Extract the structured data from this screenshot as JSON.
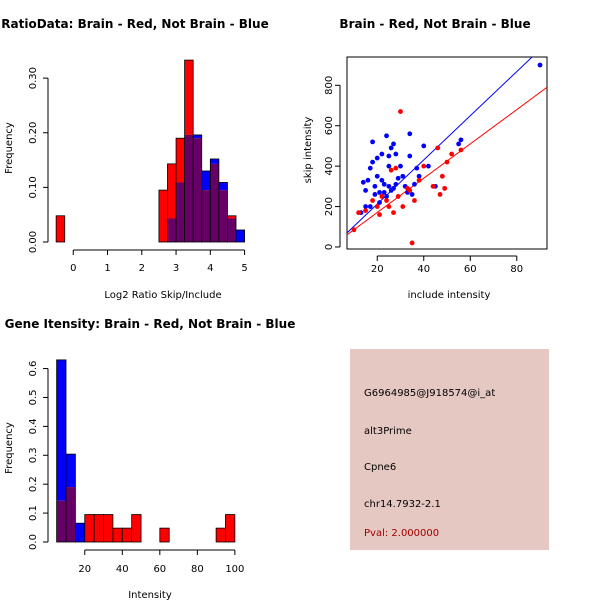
{
  "colors": {
    "red": "#ff0000",
    "blue": "#0000ff",
    "overlap": "#660066",
    "panel": "#e6c8c2",
    "pval": "#a00000"
  },
  "chart_data": [
    {
      "type": "bar",
      "title": "RatioData: Brain - Red, Not Brain - Blue",
      "xlabel": "Log2 Ratio Skip/Include",
      "ylabel": "Frequency",
      "xlim": [
        -0.65,
        5.1
      ],
      "ylim": [
        0,
        0.335
      ],
      "xticks": [
        0,
        1,
        2,
        3,
        4,
        5
      ],
      "yticks": [
        0.0,
        0.1,
        0.2,
        0.3
      ],
      "ytick_labels": [
        "0.00",
        "0.10",
        "0.20",
        "0.30"
      ],
      "bin_start": -0.5,
      "bin_width": 0.25,
      "series": [
        {
          "name": "Brain",
          "values": [
            0.048,
            0,
            0,
            0,
            0,
            0,
            0,
            0,
            0,
            0,
            0,
            0,
            0.095,
            0.143,
            0.19,
            0.333,
            0.19,
            0.095,
            0.143,
            0.095,
            0.048,
            0
          ]
        },
        {
          "name": "Not Brain",
          "values": [
            0,
            0,
            0,
            0,
            0,
            0,
            0,
            0,
            0,
            0,
            0,
            0,
            0,
            0.043,
            0.109,
            0.196,
            0.196,
            0.13,
            0.152,
            0.109,
            0.043,
            0.022
          ]
        }
      ]
    },
    {
      "type": "scatter",
      "title": "Brain - Red, Not Brain - Blue",
      "xlabel": "include intensity",
      "ylabel": "skip intensity",
      "xlim": [
        7,
        93
      ],
      "ylim": [
        -10,
        940
      ],
      "xticks": [
        20,
        40,
        60,
        80
      ],
      "yticks": [
        0,
        200,
        400,
        600,
        800
      ],
      "series": [
        {
          "name": "Brain",
          "points": [
            [
              10,
              85
            ],
            [
              12,
              170
            ],
            [
              15,
              180
            ],
            [
              18,
              230
            ],
            [
              20,
              200
            ],
            [
              21,
              160
            ],
            [
              22,
              250
            ],
            [
              24,
              230
            ],
            [
              25,
              200
            ],
            [
              26,
              380
            ],
            [
              27,
              170
            ],
            [
              28,
              390
            ],
            [
              29,
              250
            ],
            [
              30,
              670
            ],
            [
              31,
              200
            ],
            [
              33,
              290
            ],
            [
              34,
              280
            ],
            [
              35,
              20
            ],
            [
              36,
              230
            ],
            [
              38,
              330
            ],
            [
              40,
              400
            ],
            [
              44,
              300
            ],
            [
              46,
              490
            ],
            [
              47,
              260
            ],
            [
              48,
              350
            ],
            [
              49,
              290
            ],
            [
              50,
              420
            ],
            [
              52,
              460
            ],
            [
              56,
              480
            ]
          ],
          "fit": [
            [
              7,
              60
            ],
            [
              93,
              790
            ]
          ]
        },
        {
          "name": "Not Brain",
          "points": [
            [
              13,
              170
            ],
            [
              14,
              320
            ],
            [
              15,
              280
            ],
            [
              15,
              200
            ],
            [
              16,
              330
            ],
            [
              17,
              200
            ],
            [
              17,
              390
            ],
            [
              18,
              520
            ],
            [
              18,
              420
            ],
            [
              19,
              300
            ],
            [
              19,
              260
            ],
            [
              20,
              440
            ],
            [
              20,
              350
            ],
            [
              21,
              270
            ],
            [
              21,
              220
            ],
            [
              22,
              330
            ],
            [
              22,
              460
            ],
            [
              23,
              310
            ],
            [
              23,
              270
            ],
            [
              24,
              250
            ],
            [
              24,
              550
            ],
            [
              25,
              300
            ],
            [
              25,
              400
            ],
            [
              25,
              450
            ],
            [
              26,
              280
            ],
            [
              26,
              490
            ],
            [
              27,
              510
            ],
            [
              27,
              290
            ],
            [
              28,
              310
            ],
            [
              28,
              460
            ],
            [
              29,
              340
            ],
            [
              30,
              400
            ],
            [
              31,
              350
            ],
            [
              32,
              300
            ],
            [
              33,
              270
            ],
            [
              34,
              560
            ],
            [
              34,
              450
            ],
            [
              35,
              260
            ],
            [
              36,
              310
            ],
            [
              37,
              390
            ],
            [
              38,
              350
            ],
            [
              40,
              500
            ],
            [
              42,
              400
            ],
            [
              45,
              300
            ],
            [
              55,
              510
            ],
            [
              56,
              530
            ],
            [
              90,
              900
            ]
          ],
          "fit": [
            [
              7,
              70
            ],
            [
              93,
              1010
            ]
          ]
        }
      ]
    },
    {
      "type": "bar",
      "title": "Gene Itensity: Brain - Red, Not Brain - Blue",
      "xlabel": "Intensity",
      "ylabel": "Frequency",
      "xlim": [
        2,
        107
      ],
      "ylim": [
        0,
        0.64
      ],
      "xticks": [
        20,
        40,
        60,
        80,
        100
      ],
      "yticks": [
        0.0,
        0.1,
        0.2,
        0.3,
        0.4,
        0.5,
        0.6
      ],
      "ytick_labels": [
        "0.0",
        "0.1",
        "0.2",
        "0.3",
        "0.4",
        "0.5",
        "0.6"
      ],
      "bin_start": 5,
      "bin_width": 5,
      "series": [
        {
          "name": "Brain",
          "values": [
            0.143,
            0.19,
            0,
            0.095,
            0.095,
            0.095,
            0.048,
            0.048,
            0.095,
            0,
            0,
            0.048,
            0,
            0,
            0,
            0,
            0,
            0.048,
            0.095
          ]
        },
        {
          "name": "Not Brain",
          "values": [
            0.63,
            0.304,
            0.065,
            0,
            0,
            0,
            0,
            0,
            0,
            0,
            0,
            0,
            0,
            0,
            0,
            0,
            0,
            0,
            0
          ]
        }
      ]
    }
  ],
  "info_panel": {
    "probe": "G6964985@J918574@i_at",
    "event": "alt3Prime",
    "gene": "Cpne6",
    "location": "chr14.7932-2.1",
    "pval": "Pval: 2.000000"
  }
}
